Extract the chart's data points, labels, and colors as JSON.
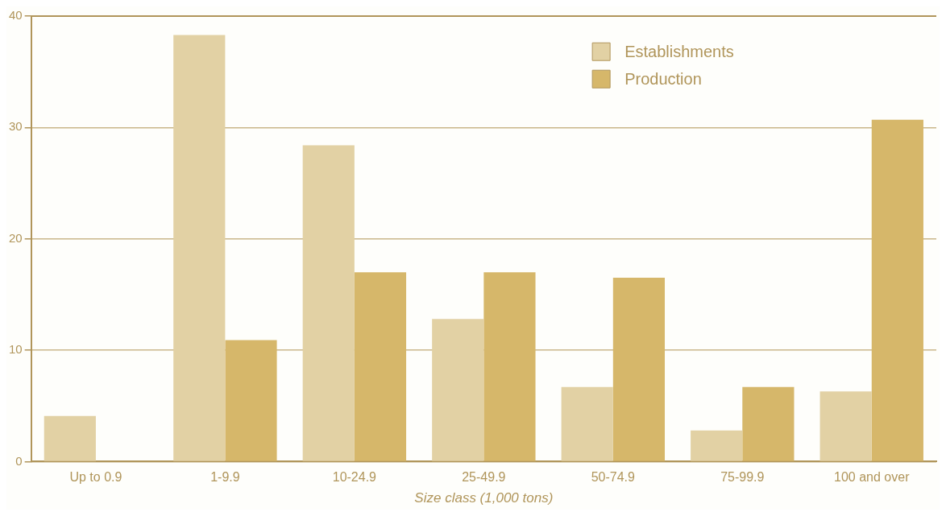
{
  "chart_data": {
    "type": "bar",
    "xlabel": "Size class (1,000 tons)",
    "categories": [
      "Up to 0.9",
      "1-9.9",
      "10-24.9",
      "25-49.9",
      "50-74.9",
      "75-99.9",
      "100 and over"
    ],
    "series": [
      {
        "name": "Establishments",
        "color": "#e2d1a4",
        "values": [
          4.1,
          38.3,
          28.4,
          12.8,
          6.7,
          2.8,
          6.3
        ]
      },
      {
        "name": "Production",
        "color": "#d6b76a",
        "values": [
          0,
          10.9,
          17.0,
          17.0,
          16.5,
          6.7,
          30.7
        ]
      }
    ],
    "ylim": [
      0,
      40
    ],
    "yticks": [
      0,
      10,
      20,
      30,
      40
    ],
    "grid": "y",
    "legend": "top right"
  }
}
